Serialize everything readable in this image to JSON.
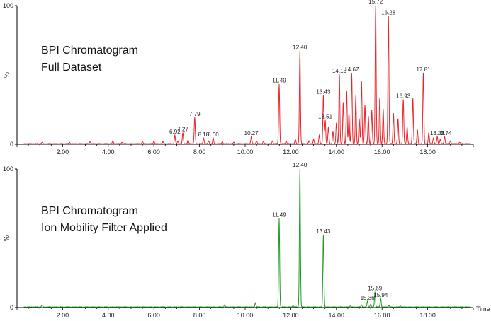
{
  "chart_data": [
    {
      "type": "line",
      "title": "BPI Chromatogram",
      "subtitle": "Full Dataset",
      "color": "#e8262a",
      "xlabel": "",
      "ylabel": "%",
      "xlim": [
        0,
        20
      ],
      "ylim": [
        0,
        100
      ],
      "x_ticks": [
        "2.00",
        "4.00",
        "6.00",
        "8.00",
        "10.00",
        "12.00",
        "14.00",
        "16.00",
        "18.00"
      ],
      "y_ticks": [
        "0",
        "100"
      ],
      "grid": false,
      "peaks": [
        {
          "x": 6.92,
          "y": 6,
          "label": "6.92"
        },
        {
          "x": 7.27,
          "y": 8,
          "label": "7.27"
        },
        {
          "x": 7.79,
          "y": 19,
          "label": "7.79"
        },
        {
          "x": 8.18,
          "y": 4,
          "label": "8.18"
        },
        {
          "x": 8.6,
          "y": 4,
          "label": "8.60"
        },
        {
          "x": 10.27,
          "y": 5,
          "label": "10.27"
        },
        {
          "x": 11.49,
          "y": 43,
          "label": "11.49"
        },
        {
          "x": 12.4,
          "y": 67,
          "label": "12.40"
        },
        {
          "x": 13.43,
          "y": 35,
          "label": "13.43"
        },
        {
          "x": 13.51,
          "y": 17,
          "label": "13.51"
        },
        {
          "x": 14.13,
          "y": 50,
          "label": "14.13"
        },
        {
          "x": 14.67,
          "y": 51,
          "label": "14.67"
        },
        {
          "x": 15.72,
          "y": 100,
          "label": "15.72"
        },
        {
          "x": 16.28,
          "y": 92,
          "label": "16.28"
        },
        {
          "x": 16.93,
          "y": 32,
          "label": "16.93"
        },
        {
          "x": 17.81,
          "y": 51,
          "label": "17.81"
        },
        {
          "x": 18.42,
          "y": 5,
          "label": "18.42"
        },
        {
          "x": 18.74,
          "y": 5,
          "label": "18.74"
        }
      ],
      "minor_peaks": [
        {
          "x": 1.1,
          "y": 1
        },
        {
          "x": 2.3,
          "y": 1
        },
        {
          "x": 3.2,
          "y": 1.5
        },
        {
          "x": 4.2,
          "y": 2
        },
        {
          "x": 4.6,
          "y": 1
        },
        {
          "x": 5.5,
          "y": 1.5
        },
        {
          "x": 6.0,
          "y": 2
        },
        {
          "x": 6.4,
          "y": 1.5
        },
        {
          "x": 7.05,
          "y": 2
        },
        {
          "x": 7.5,
          "y": 2.5
        },
        {
          "x": 8.4,
          "y": 2
        },
        {
          "x": 9.0,
          "y": 1.5
        },
        {
          "x": 9.5,
          "y": 1
        },
        {
          "x": 10.5,
          "y": 2
        },
        {
          "x": 10.8,
          "y": 1.5
        },
        {
          "x": 11.2,
          "y": 2
        },
        {
          "x": 11.8,
          "y": 2
        },
        {
          "x": 12.2,
          "y": 3
        },
        {
          "x": 12.8,
          "y": 2
        },
        {
          "x": 13.0,
          "y": 3
        },
        {
          "x": 13.25,
          "y": 6
        },
        {
          "x": 13.65,
          "y": 12
        },
        {
          "x": 13.85,
          "y": 9
        },
        {
          "x": 14.0,
          "y": 15
        },
        {
          "x": 14.3,
          "y": 30
        },
        {
          "x": 14.45,
          "y": 38
        },
        {
          "x": 14.55,
          "y": 22
        },
        {
          "x": 14.85,
          "y": 35
        },
        {
          "x": 15.0,
          "y": 18
        },
        {
          "x": 15.1,
          "y": 45
        },
        {
          "x": 15.25,
          "y": 28
        },
        {
          "x": 15.4,
          "y": 20
        },
        {
          "x": 15.55,
          "y": 24
        },
        {
          "x": 15.9,
          "y": 33
        },
        {
          "x": 16.05,
          "y": 25
        },
        {
          "x": 16.5,
          "y": 22
        },
        {
          "x": 16.7,
          "y": 18
        },
        {
          "x": 17.1,
          "y": 12
        },
        {
          "x": 17.35,
          "y": 33
        },
        {
          "x": 17.55,
          "y": 10
        },
        {
          "x": 18.05,
          "y": 8
        },
        {
          "x": 18.25,
          "y": 4
        },
        {
          "x": 18.55,
          "y": 3
        },
        {
          "x": 19.0,
          "y": 2
        },
        {
          "x": 19.4,
          "y": 1
        }
      ]
    },
    {
      "type": "line",
      "title": "BPI Chromatogram",
      "subtitle": "Ion Mobility Filter Applied",
      "color": "#1e9a25",
      "xlabel": "Time",
      "ylabel": "%",
      "xlim": [
        0,
        20
      ],
      "ylim": [
        0,
        100
      ],
      "x_ticks": [
        "2.00",
        "4.00",
        "6.00",
        "8.00",
        "10.00",
        "12.00",
        "14.00",
        "16.00",
        "18.00"
      ],
      "y_ticks": [
        "0",
        "100"
      ],
      "grid": false,
      "peaks": [
        {
          "x": 11.49,
          "y": 64,
          "label": "11.49"
        },
        {
          "x": 12.4,
          "y": 100,
          "label": "12.40"
        },
        {
          "x": 13.43,
          "y": 52,
          "label": "13.43"
        },
        {
          "x": 15.36,
          "y": 4,
          "label": "15.36"
        },
        {
          "x": 15.69,
          "y": 11,
          "label": "15.69"
        },
        {
          "x": 15.94,
          "y": 6,
          "label": "15.94"
        }
      ],
      "minor_peaks": [
        {
          "x": 1.1,
          "y": 1.5
        },
        {
          "x": 9.1,
          "y": 1.5
        },
        {
          "x": 10.45,
          "y": 3
        },
        {
          "x": 12.1,
          "y": 1
        },
        {
          "x": 14.6,
          "y": 0.8
        },
        {
          "x": 15.1,
          "y": 1.5
        },
        {
          "x": 15.5,
          "y": 2
        },
        {
          "x": 16.3,
          "y": 1
        },
        {
          "x": 16.8,
          "y": 0.8
        }
      ]
    }
  ]
}
